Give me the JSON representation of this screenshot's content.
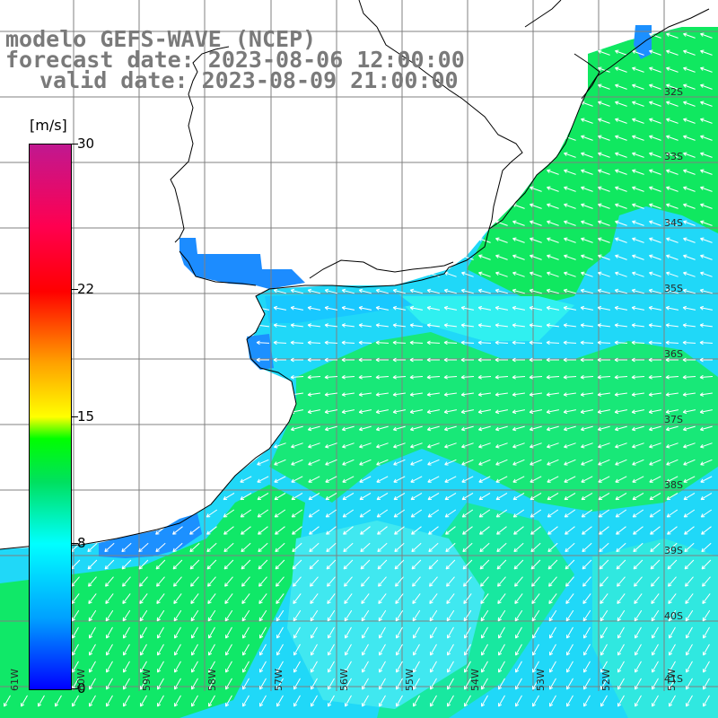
{
  "header": {
    "line1": "modelo GEFS-WAVE (NCEP)",
    "line2": "forecast date: 2023-08-06 12:00:00",
    "line3": "valid date: 2023-08-09 21:00:00"
  },
  "colorbar": {
    "unit": "[m/s]",
    "ticks": [
      {
        "label": "30",
        "value": 30
      },
      {
        "label": "22",
        "value": 22
      },
      {
        "label": "15",
        "value": 15
      },
      {
        "label": "8",
        "value": 8
      },
      {
        "label": "0",
        "value": 0
      }
    ]
  },
  "lat_labels": [
    "32S",
    "33S",
    "34S",
    "35S",
    "36S",
    "37S",
    "38S",
    "39S",
    "40S",
    "41S"
  ],
  "lon_labels": [
    "61W",
    "60W",
    "59W",
    "58W",
    "57W",
    "56W",
    "55W",
    "54W",
    "53W",
    "52W",
    "51W"
  ],
  "colors": {
    "land": "#ffffff",
    "grid": "#808080",
    "coast": "#000000",
    "arrow": "#ffffff",
    "green": "#10e060",
    "cyan": "#10f0f0",
    "sky": "#18c8ff",
    "blue": "#1c90ff"
  }
}
